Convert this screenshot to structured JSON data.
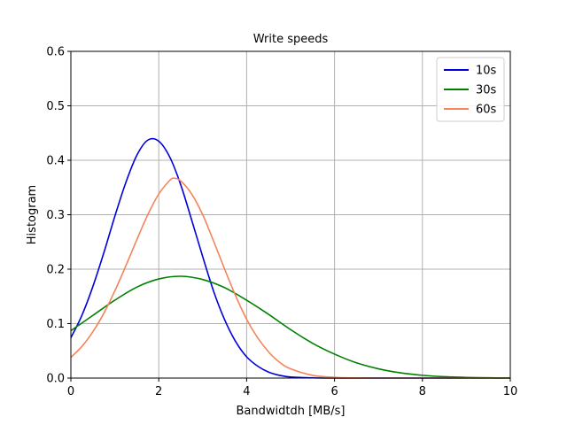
{
  "chart_data": {
    "type": "line",
    "title": "Write speeds",
    "xlabel": "Bandwidtdh [MB/s]",
    "ylabel": "Histogram",
    "xlim": [
      0,
      10
    ],
    "ylim": [
      0,
      0.6
    ],
    "xticks": [
      0,
      2,
      4,
      6,
      8,
      10
    ],
    "xtick_labels": [
      "0",
      "2",
      "4",
      "6",
      "8",
      "10"
    ],
    "yticks": [
      0.0,
      0.1,
      0.2,
      0.3,
      0.4,
      0.5,
      0.6
    ],
    "ytick_labels": [
      "0.0",
      "0.1",
      "0.2",
      "0.3",
      "0.4",
      "0.5",
      "0.6"
    ],
    "grid": true,
    "legend_position": "top-right",
    "series": [
      {
        "name": "10s",
        "color": "#0000dd",
        "x": [
          0,
          0.25,
          0.5,
          0.75,
          1.0,
          1.25,
          1.5,
          1.75,
          2.0,
          2.25,
          2.5,
          2.75,
          3.0,
          3.25,
          3.5,
          3.75,
          4.0,
          4.25,
          4.5,
          4.75,
          5.0,
          5.5,
          6.0,
          7.0,
          8.0,
          9.0,
          10.0
        ],
        "y": [
          0.074,
          0.115,
          0.168,
          0.23,
          0.297,
          0.359,
          0.409,
          0.437,
          0.435,
          0.406,
          0.355,
          0.29,
          0.223,
          0.159,
          0.107,
          0.067,
          0.039,
          0.022,
          0.011,
          0.005,
          0.002,
          0.0004,
          0.0,
          0.0,
          0.0,
          0.0,
          0.0
        ]
      },
      {
        "name": "30s",
        "color": "#008000",
        "x": [
          0,
          0.5,
          1.0,
          1.5,
          2.0,
          2.5,
          3.0,
          3.5,
          4.0,
          4.5,
          5.0,
          5.5,
          6.0,
          6.5,
          7.0,
          7.5,
          8.0,
          8.5,
          9.0,
          9.5,
          10.0
        ],
        "y": [
          0.087,
          0.115,
          0.143,
          0.167,
          0.182,
          0.187,
          0.181,
          0.166,
          0.143,
          0.117,
          0.089,
          0.064,
          0.044,
          0.028,
          0.017,
          0.0096,
          0.0051,
          0.0025,
          0.0012,
          0.0005,
          0.0002
        ]
      },
      {
        "name": "60s",
        "color": "#f4845a",
        "x": [
          0,
          0.25,
          0.5,
          0.75,
          1.0,
          1.25,
          1.5,
          1.75,
          2.0,
          2.25,
          2.35,
          2.5,
          2.75,
          3.0,
          3.25,
          3.5,
          3.75,
          4.0,
          4.25,
          4.5,
          4.75,
          5.0,
          5.5,
          6.0,
          6.5,
          7.0,
          8.0,
          9.0,
          10.0
        ],
        "y": [
          0.038,
          0.058,
          0.085,
          0.119,
          0.16,
          0.206,
          0.254,
          0.3,
          0.338,
          0.363,
          0.367,
          0.362,
          0.338,
          0.3,
          0.251,
          0.2,
          0.151,
          0.108,
          0.074,
          0.048,
          0.029,
          0.017,
          0.005,
          0.0013,
          0.0003,
          0.0,
          0.0,
          0.0,
          0.0
        ]
      }
    ]
  }
}
